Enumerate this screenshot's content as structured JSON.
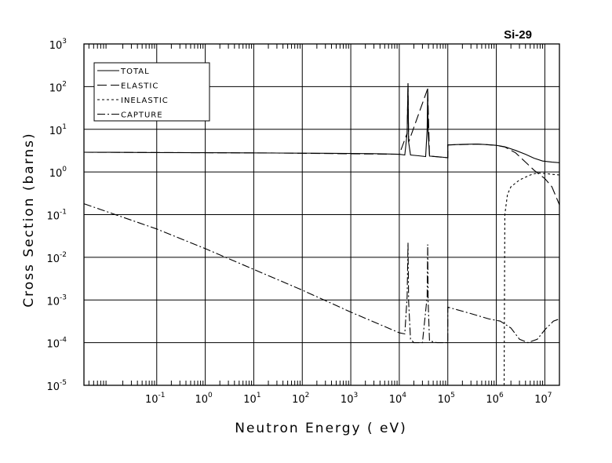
{
  "chart_data": {
    "type": "line",
    "title": "Si-29",
    "xlabel": "Neutron Energy ( eV)",
    "ylabel": "Cross Section (barns)",
    "x_scale": "log",
    "y_scale": "log",
    "xlim": [
      0.00316,
      20000000
    ],
    "ylim": [
      1e-05,
      1000
    ],
    "grid": true,
    "legend_position": "top-left",
    "x_ticks": [
      {
        "base": "10",
        "exp": "-1",
        "value": 0.1
      },
      {
        "base": "10",
        "exp": "0",
        "value": 1
      },
      {
        "base": "10",
        "exp": "1",
        "value": 10
      },
      {
        "base": "10",
        "exp": "2",
        "value": 100
      },
      {
        "base": "10",
        "exp": "3",
        "value": 1000
      },
      {
        "base": "10",
        "exp": "4",
        "value": 10000
      },
      {
        "base": "10",
        "exp": "5",
        "value": 100000
      },
      {
        "base": "10",
        "exp": "6",
        "value": 1000000
      },
      {
        "base": "10",
        "exp": "7",
        "value": 10000000
      }
    ],
    "y_ticks": [
      {
        "base": "10",
        "exp": "-5",
        "value": 1e-05
      },
      {
        "base": "10",
        "exp": "-4",
        "value": 0.0001
      },
      {
        "base": "10",
        "exp": "-3",
        "value": 0.001
      },
      {
        "base": "10",
        "exp": "-2",
        "value": 0.01
      },
      {
        "base": "10",
        "exp": "-1",
        "value": 0.1
      },
      {
        "base": "10",
        "exp": "0",
        "value": 1
      },
      {
        "base": "10",
        "exp": "1",
        "value": 10
      },
      {
        "base": "10",
        "exp": "2",
        "value": 100
      },
      {
        "base": "10",
        "exp": "3",
        "value": 1000
      }
    ],
    "series": [
      {
        "name": "TOTAL",
        "dash": "solid",
        "points": [
          [
            0.00316,
            2.9
          ],
          [
            0.01,
            2.88
          ],
          [
            0.1,
            2.85
          ],
          [
            1,
            2.82
          ],
          [
            7,
            2.8
          ],
          [
            30,
            2.78
          ],
          [
            300,
            2.74
          ],
          [
            3000,
            2.68
          ],
          [
            10000,
            2.6
          ],
          [
            13000,
            2.5
          ],
          [
            14500,
            8
          ],
          [
            15100,
            120
          ],
          [
            15600,
            5
          ],
          [
            17000,
            2.5
          ],
          [
            25000,
            2.4
          ],
          [
            35000,
            2.3
          ],
          [
            37500,
            10
          ],
          [
            38500,
            90
          ],
          [
            39300,
            8
          ],
          [
            42000,
            2.35
          ],
          [
            70000,
            2.25
          ],
          [
            100000,
            2.15
          ],
          [
            100000,
            4.3
          ],
          [
            200000,
            4.45
          ],
          [
            400000,
            4.5
          ],
          [
            700000,
            4.35
          ],
          [
            1000000,
            4.2
          ],
          [
            1500000,
            3.9
          ],
          [
            2500000,
            3.2
          ],
          [
            4000000,
            2.6
          ],
          [
            6000000,
            2.1
          ],
          [
            9000000,
            1.8
          ],
          [
            14000000,
            1.7
          ],
          [
            20000000,
            1.65
          ]
        ]
      },
      {
        "name": "ELASTIC",
        "dash": "long-dash",
        "points": [
          [
            0.00316,
            2.9
          ],
          [
            1,
            2.82
          ],
          [
            7,
            2.8
          ],
          [
            30,
            2.78
          ],
          [
            10000,
            2.6
          ],
          [
            14500,
            8
          ],
          [
            15100,
            120
          ],
          [
            15600,
            5
          ],
          [
            38500,
            90
          ],
          [
            42000,
            2.35
          ],
          [
            100000,
            2.15
          ],
          [
            100000,
            4.3
          ],
          [
            400000,
            4.5
          ],
          [
            1000000,
            4.2
          ],
          [
            1500000,
            3.85
          ],
          [
            2500000,
            2.8
          ],
          [
            4000000,
            1.7
          ],
          [
            6000000,
            1.1
          ],
          [
            8000000,
            0.85
          ],
          [
            10000000,
            0.7
          ],
          [
            14000000,
            0.45
          ],
          [
            20000000,
            0.17
          ]
        ]
      },
      {
        "name": "INELASTIC",
        "dash": "short-dash",
        "points": [
          [
            1450000,
            1e-05
          ],
          [
            1500000,
            0.1
          ],
          [
            1700000,
            0.3
          ],
          [
            2000000,
            0.45
          ],
          [
            3000000,
            0.65
          ],
          [
            5000000,
            0.85
          ],
          [
            7000000,
            0.95
          ],
          [
            10000000,
            0.92
          ],
          [
            14000000,
            0.88
          ],
          [
            20000000,
            0.85
          ]
        ]
      },
      {
        "name": "CAPTURE",
        "dash": "dash-dot",
        "points": [
          [
            0.00316,
            0.18
          ],
          [
            0.1,
            0.046
          ],
          [
            1,
            0.016
          ],
          [
            10,
            0.0052
          ],
          [
            100,
            0.0017
          ],
          [
            1000,
            0.00052
          ],
          [
            8000,
            0.00019
          ],
          [
            10000,
            0.00017
          ],
          [
            13000,
            0.00016
          ],
          [
            14500,
            0.0012
          ],
          [
            15100,
            0.022
          ],
          [
            15600,
            0.0009
          ],
          [
            17000,
            0.00012
          ],
          [
            20000,
            0.0001
          ],
          [
            30000,
            0.0001
          ],
          [
            37500,
            0.0012
          ],
          [
            38500,
            0.02
          ],
          [
            39300,
            0.0009
          ],
          [
            42000,
            0.00011
          ],
          [
            60000,
            0.0001
          ],
          [
            100000,
            0.0001
          ],
          [
            100000,
            0.00068
          ],
          [
            300000,
            0.00048
          ],
          [
            700000,
            0.00036
          ],
          [
            1200000,
            0.00032
          ],
          [
            2000000,
            0.00022
          ],
          [
            3000000,
            0.00012
          ],
          [
            4500000,
            0.0001
          ],
          [
            7000000,
            0.00012
          ],
          [
            10000000,
            0.0002
          ],
          [
            15000000,
            0.00032
          ],
          [
            20000000,
            0.00036
          ]
        ]
      }
    ]
  }
}
